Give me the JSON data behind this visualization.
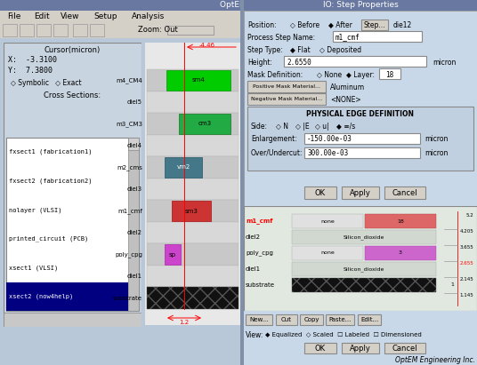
{
  "title": "OptEM ID",
  "dialog_title": "IO: Step Properties",
  "bg_color": "#b8c8d8",
  "win_bg": "#c8d4e0",
  "panel_bg": "#c8d4e0",
  "form_bg": "#c8d8e8",
  "menu_bg": "#d4d0c8",
  "titlebar_color": "#6878a0",
  "white": "#ffffff",
  "menu_items": [
    "File",
    "Edit",
    "View",
    "Setup",
    "Analysis"
  ],
  "cursor_x": "X:  -3.3100",
  "cursor_y": "Y:  7.3800",
  "cross_sections": [
    "fxsect1 (fabrication1)",
    "fxsect2 (fabrication2)",
    "nolayer (VLSI)",
    "printed_circuit (PCB)",
    "xsect1 (VLSI)",
    "xsect2 (now4help)"
  ],
  "layer_names": [
    "m4_CM4",
    "diel5",
    "m3_CM3",
    "diel4",
    "m2_cms",
    "diel3",
    "m1_cmf",
    "diel2",
    "poly_cpg",
    "diel1",
    "substrate"
  ],
  "layer_base_colors": [
    "#c8c8c8",
    "#c8c8c8",
    "#c8c8c8",
    "#c8c8c8",
    "#c8c8c8",
    "#c8c8c8",
    "#c8c8c8",
    "#c8c8c8",
    "#c8c8c8",
    "#c8c8c8",
    "#c8c8c8"
  ],
  "process_step_name": "m1_cmf",
  "height_val": "2.6550",
  "layer_val": "18",
  "pos_mask_mat": "Aluminum",
  "neg_mask_mat": "<NONE>",
  "enlargement": "-150.00e-03",
  "overundercut": "300.00e-03",
  "step_btn": "Step...",
  "step_pos": "die12",
  "bottom_values": [
    "5.2",
    "4.205",
    "3.655",
    "2.655",
    "2.145",
    "1.145",
    "1.145",
    "1"
  ],
  "zoom_label": "Zoom: Out"
}
